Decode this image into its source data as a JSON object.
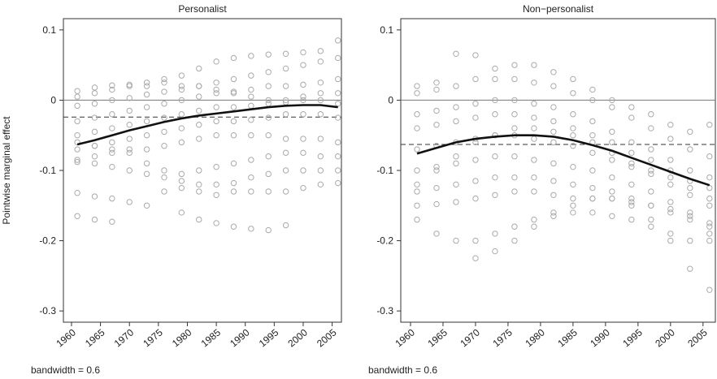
{
  "chart_data": [
    {
      "type": "scatter",
      "title": "Personalist",
      "ylabel": "Pointwise marginal effect",
      "annotation": "bandwidth = 0.6",
      "x": [
        1961,
        1964,
        1967,
        1970,
        1973,
        1976,
        1979,
        1982,
        1985,
        1988,
        1991,
        1994,
        1997,
        2000,
        2003,
        2006
      ],
      "xlim": [
        1958.6,
        2006.6
      ],
      "ylim": [
        -0.316,
        0.116
      ],
      "xticks": [
        1960,
        1965,
        1970,
        1975,
        1980,
        1985,
        1990,
        1995,
        2000,
        2005
      ],
      "yticks": [
        -0.3,
        -0.2,
        -0.1,
        0,
        0.1
      ],
      "point_color": "#aaaaaa",
      "series": [
        {
          "values": [
            0.013,
            0.018,
            0.021,
            0.022,
            0.025,
            0.03,
            0.035,
            0.045,
            0.055,
            0.06,
            0.063,
            0.065,
            0.066,
            0.068,
            0.07,
            0.085
          ]
        },
        {
          "values": [
            -0.008,
            -0.005,
            0,
            0.003,
            0.008,
            0.012,
            0.015,
            0.02,
            0.025,
            0.03,
            0.035,
            0.04,
            0.045,
            0.05,
            0.055,
            0.06
          ]
        },
        {
          "values": [
            -0.03,
            -0.025,
            -0.02,
            -0.015,
            -0.01,
            -0.005,
            0,
            0.005,
            0.01,
            0.012,
            0.015,
            0.02,
            0.02,
            0.022,
            0.025,
            0.03
          ]
        },
        {
          "values": [
            -0.05,
            -0.045,
            -0.04,
            -0.035,
            -0.03,
            -0.025,
            -0.02,
            -0.015,
            -0.01,
            -0.01,
            -0.008,
            -0.005,
            -0.003,
            0,
            0,
            -0.005
          ]
        },
        {
          "values": [
            -0.07,
            -0.065,
            -0.06,
            -0.055,
            -0.05,
            -0.045,
            -0.04,
            -0.035,
            -0.03,
            -0.03,
            -0.028,
            -0.025,
            -0.02,
            -0.02,
            -0.02,
            -0.025
          ]
        },
        {
          "values": [
            -0.088,
            -0.08,
            -0.075,
            -0.07,
            -0.07,
            -0.065,
            -0.06,
            -0.055,
            -0.05,
            -0.05,
            -0.05,
            -0.05,
            -0.055,
            -0.055,
            -0.055,
            -0.06
          ]
        },
        {
          "values": [
            -0.06,
            -0.065,
            -0.07,
            -0.075,
            -0.09,
            -0.1,
            -0.105,
            -0.1,
            -0.095,
            -0.09,
            -0.085,
            -0.08,
            -0.075,
            -0.075,
            -0.08,
            -0.08
          ]
        },
        {
          "values": [
            -0.085,
            -0.09,
            -0.095,
            -0.1,
            -0.105,
            -0.11,
            -0.115,
            -0.12,
            -0.12,
            -0.118,
            -0.11,
            -0.105,
            -0.1,
            -0.1,
            -0.1,
            -0.1
          ]
        },
        {
          "values": [
            -0.132,
            -0.137,
            -0.14,
            -0.145,
            -0.15,
            -0.13,
            -0.125,
            -0.13,
            -0.135,
            -0.13,
            -0.13,
            -0.13,
            -0.13,
            -0.125,
            -0.12,
            -0.118
          ]
        },
        {
          "values": [
            -0.165,
            -0.17,
            -0.173,
            null,
            null,
            null,
            -0.16,
            -0.17,
            -0.175,
            -0.18,
            -0.183,
            -0.185,
            -0.178,
            null,
            null,
            null
          ]
        },
        {
          "values": [
            0.005,
            0.01,
            0.015,
            0.02,
            0.02,
            0.025,
            0.02,
            0.02,
            0.015,
            0.01,
            0.005,
            0,
            0,
            0.005,
            0.01,
            0.01
          ]
        }
      ],
      "smooth": {
        "color": "#111111",
        "values": [
          -0.063,
          -0.057,
          -0.05,
          -0.043,
          -0.037,
          -0.031,
          -0.026,
          -0.022,
          -0.019,
          -0.016,
          -0.013,
          -0.01,
          -0.008,
          -0.007,
          -0.007,
          -0.01
        ]
      },
      "ref_line": 0,
      "dashed_line": -0.024
    },
    {
      "type": "scatter",
      "title": "Non−personalist",
      "annotation": "bandwidth = 0.6",
      "x": [
        1961,
        1964,
        1967,
        1970,
        1973,
        1976,
        1979,
        1982,
        1985,
        1988,
        1991,
        1994,
        1997,
        2000,
        2003,
        2006
      ],
      "xlim": [
        1958.5,
        2006.9
      ],
      "ylim": [
        -0.316,
        0.116
      ],
      "xticks": [
        1960,
        1965,
        1970,
        1975,
        1980,
        1985,
        1990,
        1995,
        2000,
        2005
      ],
      "yticks": [
        -0.3,
        -0.2,
        -0.1,
        0,
        0.1
      ],
      "point_color": "#aaaaaa",
      "series": [
        {
          "values": [
            0.02,
            0.025,
            0.066,
            0.064,
            0.045,
            0.05,
            0.05,
            0.04,
            0.03,
            0.015,
            0,
            -0.01,
            -0.02,
            -0.035,
            -0.045,
            -0.035
          ]
        },
        {
          "values": [
            0.01,
            0.015,
            0.02,
            0.03,
            0.03,
            0.03,
            0.025,
            0.02,
            0.01,
            0,
            -0.01,
            -0.025,
            -0.04,
            -0.055,
            -0.07,
            -0.08
          ]
        },
        {
          "values": [
            -0.02,
            -0.015,
            -0.01,
            -0.005,
            0,
            0,
            -0.005,
            -0.01,
            -0.02,
            -0.03,
            -0.045,
            -0.06,
            -0.07,
            -0.085,
            -0.1,
            -0.11
          ]
        },
        {
          "values": [
            -0.04,
            -0.035,
            -0.03,
            -0.025,
            -0.02,
            -0.02,
            -0.025,
            -0.03,
            -0.04,
            -0.05,
            -0.06,
            -0.075,
            -0.085,
            -0.1,
            -0.115,
            -0.125
          ]
        },
        {
          "values": [
            -0.07,
            -0.065,
            -0.06,
            -0.055,
            -0.05,
            -0.05,
            -0.055,
            -0.06,
            -0.065,
            -0.075,
            -0.085,
            -0.095,
            -0.105,
            -0.12,
            -0.135,
            -0.15
          ]
        },
        {
          "values": [
            -0.1,
            -0.095,
            -0.09,
            -0.085,
            -0.08,
            -0.08,
            -0.085,
            -0.09,
            -0.095,
            -0.1,
            -0.11,
            -0.12,
            -0.13,
            -0.145,
            -0.16,
            -0.175
          ]
        },
        {
          "values": [
            -0.13,
            -0.125,
            -0.12,
            -0.115,
            -0.11,
            -0.11,
            -0.11,
            -0.115,
            -0.12,
            -0.125,
            -0.13,
            -0.14,
            -0.15,
            -0.16,
            -0.17,
            -0.18
          ]
        },
        {
          "values": [
            -0.15,
            -0.148,
            -0.145,
            -0.14,
            -0.135,
            -0.13,
            -0.13,
            -0.135,
            -0.14,
            -0.14,
            -0.14,
            -0.15,
            -0.17,
            -0.2,
            -0.24,
            -0.27
          ]
        },
        {
          "values": [
            -0.17,
            -0.19,
            -0.2,
            -0.2,
            -0.19,
            -0.18,
            -0.17,
            -0.16,
            -0.16,
            -0.16,
            -0.165,
            -0.17,
            -0.18,
            -0.19,
            -0.2,
            -0.2
          ]
        },
        {
          "values": [
            null,
            null,
            null,
            -0.225,
            -0.215,
            -0.2,
            -0.18,
            -0.165,
            -0.15,
            -0.14,
            -0.14,
            -0.145,
            -0.15,
            -0.155,
            -0.165,
            -0.19
          ]
        },
        {
          "values": [
            -0.12,
            -0.1,
            -0.08,
            -0.06,
            -0.05,
            -0.04,
            -0.04,
            -0.045,
            -0.05,
            -0.06,
            -0.075,
            -0.09,
            -0.1,
            -0.11,
            -0.125,
            -0.14
          ]
        }
      ],
      "smooth": {
        "color": "#111111",
        "values": [
          -0.076,
          -0.068,
          -0.06,
          -0.055,
          -0.052,
          -0.05,
          -0.05,
          -0.052,
          -0.057,
          -0.064,
          -0.072,
          -0.082,
          -0.092,
          -0.102,
          -0.112,
          -0.121
        ]
      },
      "ref_line": 0,
      "dashed_line": -0.063
    }
  ]
}
